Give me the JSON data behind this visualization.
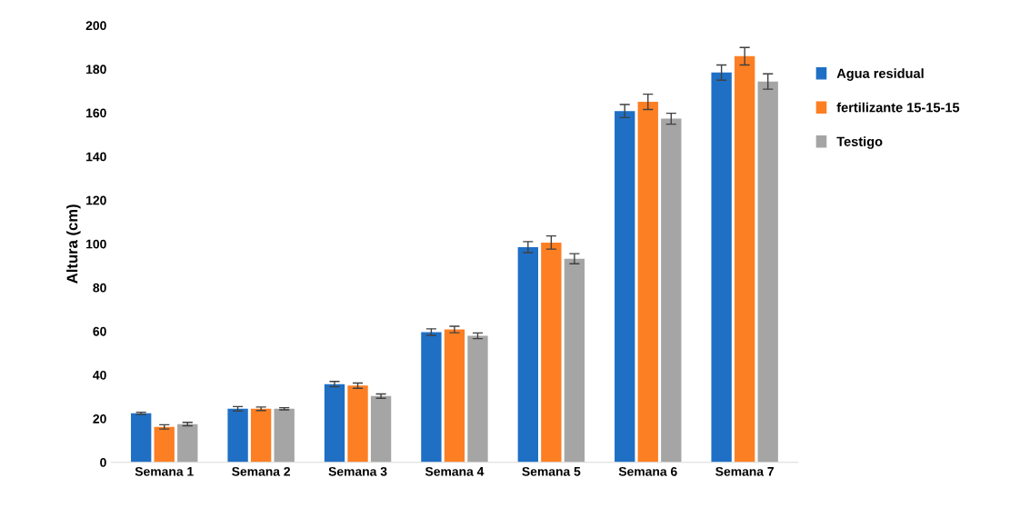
{
  "chart_data": {
    "type": "bar",
    "ylabel": "Altura (cm)",
    "categories": [
      "Semana 1",
      "Semana 2",
      "Semana 3",
      "Semana 4",
      "Semana 5",
      "Semana 6",
      "Semana 7"
    ],
    "series": [
      {
        "name": "Agua residual",
        "color": "#1f6fc5",
        "values": [
          22.4,
          24.5,
          35.8,
          59.6,
          98.5,
          160.8,
          178.4
        ],
        "errors": [
          0.5,
          1,
          1.2,
          1.5,
          2.5,
          3,
          3.5
        ]
      },
      {
        "name": "fertilizante 15-15-15",
        "color": "#fd7f23",
        "values": [
          16.2,
          24.5,
          35.1,
          60.8,
          100.6,
          165,
          185.9
        ],
        "errors": [
          1,
          0.8,
          1.2,
          1.5,
          3,
          3.5,
          4
        ]
      },
      {
        "name": "Testigo",
        "color": "#a5a5a5",
        "values": [
          17.5,
          24.5,
          30.3,
          57.9,
          93.2,
          157.3,
          174.3
        ],
        "errors": [
          0.8,
          0.5,
          1,
          1.3,
          2.3,
          2.5,
          3.5
        ]
      }
    ],
    "ylim": [
      0,
      200
    ],
    "yticks": [
      0,
      20,
      40,
      60,
      80,
      100,
      120,
      140,
      160,
      180,
      200
    ],
    "grid": false,
    "legend": "right"
  }
}
